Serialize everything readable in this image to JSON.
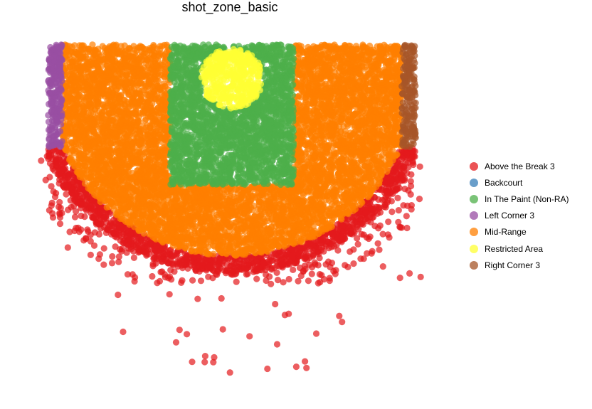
{
  "chart_data": {
    "type": "scatter",
    "title": "shot_zone_basic",
    "xlabel": "",
    "ylabel": "",
    "xlim": [
      -250,
      250
    ],
    "ylim": [
      -50,
      400
    ],
    "grid": false,
    "legend_position": "right",
    "point_opacity": 0.7,
    "series": [
      {
        "name": "Above the Break 3",
        "color": "#E41A1C"
      },
      {
        "name": "Backcourt",
        "color": "#377EB8"
      },
      {
        "name": "In The Paint (Non-RA)",
        "color": "#4DAF4A"
      },
      {
        "name": "Left Corner 3",
        "color": "#984EA3"
      },
      {
        "name": "Mid-Range",
        "color": "#FF7F00"
      },
      {
        "name": "Restricted Area",
        "color": "#FFFF33"
      },
      {
        "name": "Right Corner 3",
        "color": "#A65628"
      }
    ]
  }
}
